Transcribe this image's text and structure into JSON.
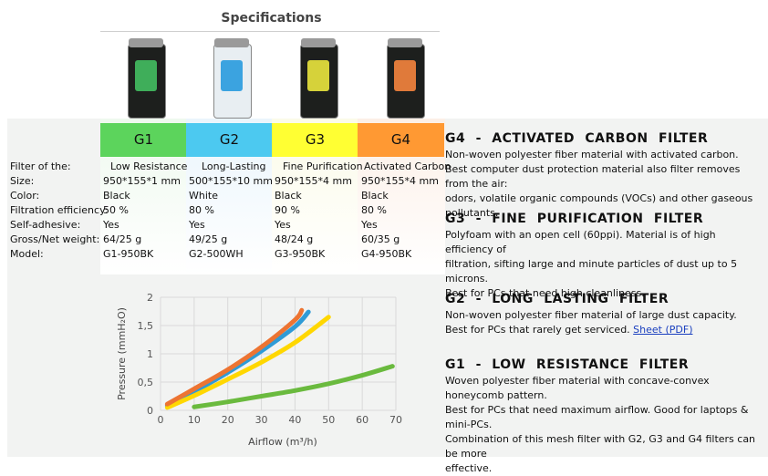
{
  "spec": {
    "title": "Specifications",
    "grades": [
      {
        "name": "G1",
        "color": "#5cd45c",
        "tint": "#eef9ee",
        "product_color": "#1d1f1d",
        "label_color": "#3fae5a"
      },
      {
        "name": "G2",
        "color": "#4cc9f0",
        "tint": "#eaf5fc",
        "product_color": "#e8eef2",
        "label_color": "#3ba3e0"
      },
      {
        "name": "G3",
        "color": "#ffff33",
        "tint": "#fbfbe8",
        "product_color": "#1d1f1d",
        "label_color": "#d6d23a"
      },
      {
        "name": "G4",
        "color": "#ff9933",
        "tint": "#fcefe6",
        "product_color": "#1d1f1d",
        "label_color": "#e07a3a"
      }
    ],
    "row_labels": [
      "Filter of the:",
      "Size:",
      "Color:",
      "Filtration efficiency:",
      "Self-adhesive:",
      "Gross/Net weight:",
      "Model:"
    ],
    "columns": [
      [
        "Low Resistance",
        "950*155*1 mm",
        "Black",
        "50 %",
        "Yes",
        "64/25 g",
        "G1-950BK"
      ],
      [
        "Long-Lasting",
        "500*155*10 mm",
        "White",
        "80 %",
        "Yes",
        "49/25 g",
        "G2-500WH"
      ],
      [
        "Fine Purification",
        "950*155*4 mm",
        "Black",
        "90 %",
        "Yes",
        "48/24 g",
        "G3-950BK"
      ],
      [
        "Activated Carbon",
        "950*155*4 mm",
        "Black",
        "80 %",
        "Yes",
        "60/35 g",
        "G4-950BK"
      ]
    ]
  },
  "descriptions": {
    "g4": {
      "heading": "G4 - ACTIVATED CARBON FILTER",
      "lines": [
        "Non-woven polyester fiber material with activated carbon.",
        "Best computer dust protection material also filter removes from the air:",
        "odors, volatile organic compounds (VOCs) and other gaseous pollutants."
      ]
    },
    "g3": {
      "heading": "G3 - FINE PURIFICATION FILTER",
      "lines": [
        "Polyfoam with an open cell (60ppi). Material is of high efficiency of",
        "filtration, sifting large and minute particles of dust up to 5 microns.",
        "Best for PCs that need high cleanliness."
      ]
    },
    "g2": {
      "heading": "G2 - LONG LASTING FILTER",
      "line1": "Non-woven polyester fiber material of large dust capacity.",
      "line2": "Best for PCs that rarely get serviced.",
      "link": "Sheet (PDF)"
    },
    "g1": {
      "heading": "G1 - LOW RESISTANCE FILTER",
      "lines": [
        "Woven polyester fiber material with concave-convex honeycomb pattern.",
        "Best for PCs that need maximum airflow. Good for laptops & mini-PCs.",
        "Combination of this mesh filter with G2, G3 and G4 filters can be more",
        "effective."
      ]
    }
  },
  "chart_data": {
    "type": "line",
    "xlabel": "Airflow (m³/h)",
    "ylabel": "Pressure (mmH₂O)",
    "xlim": [
      0,
      70
    ],
    "ylim": [
      0,
      2
    ],
    "xticks": [
      0,
      10,
      20,
      30,
      40,
      50,
      60,
      70
    ],
    "yticks": [
      "0",
      "0,5",
      "1",
      "1,5",
      "2"
    ],
    "ytick_values": [
      0,
      0.5,
      1,
      1.5,
      2
    ],
    "grid": true,
    "series": [
      {
        "name": "G1",
        "color": "#6aba3e",
        "x": [
          10,
          20,
          30,
          40,
          50,
          60,
          69
        ],
        "y": [
          0.06,
          0.15,
          0.25,
          0.35,
          0.47,
          0.62,
          0.78
        ]
      },
      {
        "name": "G2",
        "color": "#2f9bd6",
        "x": [
          2,
          10,
          20,
          30,
          40,
          44
        ],
        "y": [
          0.08,
          0.33,
          0.67,
          1.05,
          1.48,
          1.74
        ]
      },
      {
        "name": "G3",
        "color": "#ffd700",
        "x": [
          2,
          10,
          20,
          30,
          40,
          50
        ],
        "y": [
          0.05,
          0.26,
          0.55,
          0.85,
          1.2,
          1.65
        ]
      },
      {
        "name": "G4",
        "color": "#ed7432",
        "x": [
          2,
          10,
          20,
          30,
          40,
          42
        ],
        "y": [
          0.11,
          0.38,
          0.72,
          1.12,
          1.6,
          1.77
        ]
      }
    ]
  }
}
